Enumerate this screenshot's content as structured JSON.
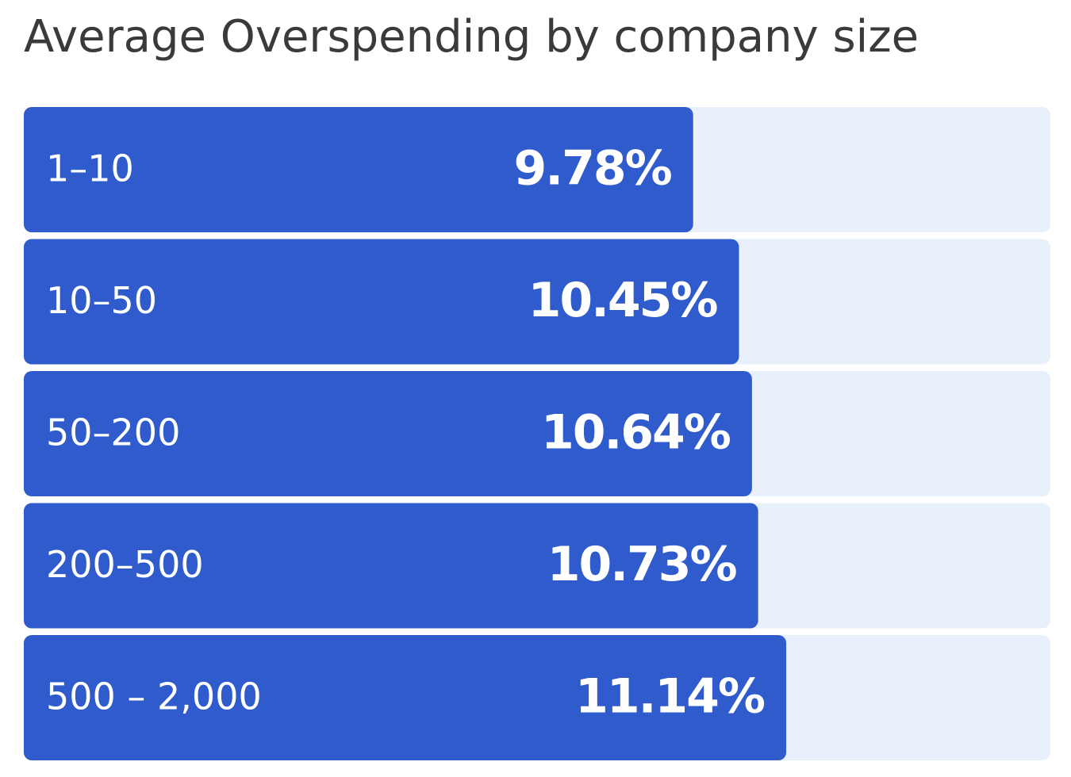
{
  "chart_data": {
    "type": "bar",
    "orientation": "horizontal",
    "title": "Average Overspending by company size",
    "categories": [
      "1–10",
      "10–50",
      "50–200",
      "200–500",
      "500 – 2,000"
    ],
    "values": [
      9.78,
      10.45,
      10.64,
      10.73,
      11.14
    ],
    "value_labels": [
      "9.78%",
      "10.45%",
      "10.64%",
      "10.73%",
      "11.14%"
    ],
    "color": "#2f5bcc",
    "track_color": "#e8f1fb",
    "xlim": [
      0,
      15
    ]
  }
}
